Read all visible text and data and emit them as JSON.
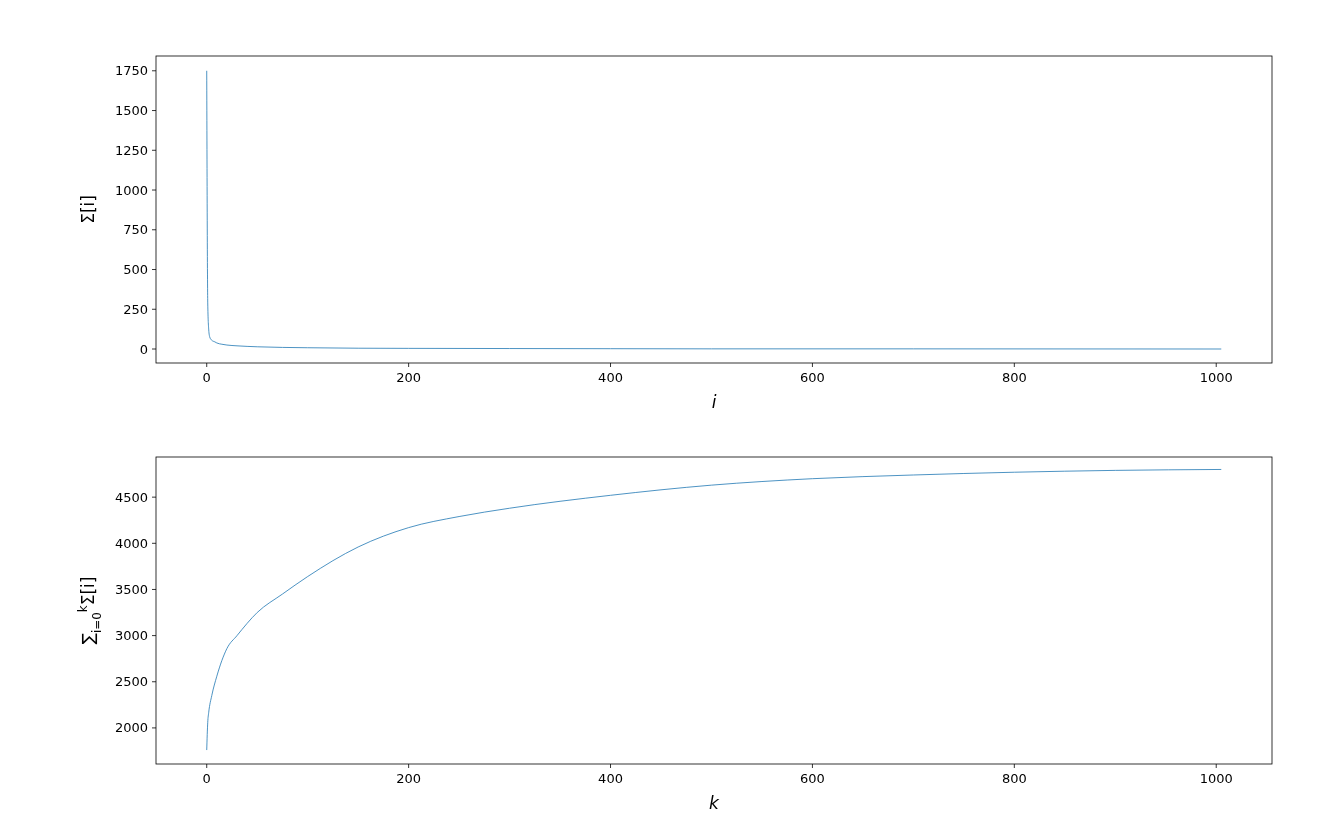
{
  "chart_data": [
    {
      "type": "line",
      "xlabel": "i",
      "ylabel": "Σ[i]",
      "xlim": [
        -50.25,
        1055.25
      ],
      "ylim": [
        -88,
        1843
      ],
      "xticks": [
        0,
        200,
        400,
        600,
        800,
        1000
      ],
      "yticks": [
        0,
        250,
        500,
        750,
        1000,
        1250,
        1500,
        1750
      ],
      "series": [
        {
          "color": "#1f77b4",
          "x": [
            0,
            1,
            2,
            3,
            5,
            8,
            10,
            15,
            20,
            30,
            50,
            75,
            100,
            150,
            200,
            300,
            400,
            500,
            700,
            1005
          ],
          "values": [
            1750,
            290,
            120,
            75,
            55,
            45,
            38,
            30,
            25,
            20,
            14,
            10,
            8,
            5,
            4,
            3,
            2,
            1,
            1,
            0
          ]
        }
      ]
    },
    {
      "type": "line",
      "xlabel": "k",
      "ylabel": "∑$_{i=0}$$^{k}$Σ[i]",
      "xlim": [
        -50.25,
        1055.25
      ],
      "ylim": [
        1609,
        4935
      ],
      "xticks": [
        0,
        200,
        400,
        600,
        800,
        1000
      ],
      "yticks": [
        2000,
        2500,
        3000,
        3500,
        4000,
        4500
      ],
      "series": [
        {
          "color": "#1f77b4",
          "x": [
            0,
            1,
            2,
            5,
            10,
            20,
            30,
            50,
            75,
            100,
            150,
            200,
            250,
            300,
            400,
            500,
            600,
            700,
            800,
            900,
            1005
          ],
          "values": [
            1760,
            2060,
            2170,
            2350,
            2560,
            2860,
            3000,
            3250,
            3450,
            3640,
            3960,
            4170,
            4290,
            4380,
            4520,
            4630,
            4700,
            4740,
            4770,
            4790,
            4800
          ]
        }
      ]
    }
  ]
}
